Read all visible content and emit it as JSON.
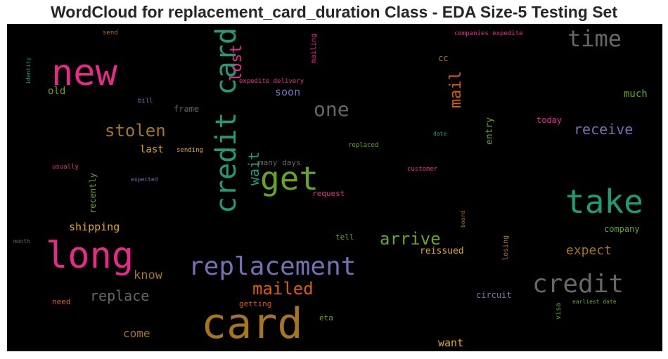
{
  "chart_data": {
    "type": "wordcloud",
    "title": "WordCloud for replacement_card_duration Class - EDA Size-5 Testing Set",
    "background": "#000000",
    "words": [
      {
        "text": "card",
        "color": "#a6761d"
      },
      {
        "text": "new",
        "color": "#e7298a"
      },
      {
        "text": "credit card",
        "color": "#1b9e77"
      },
      {
        "text": "take",
        "color": "#1b9e77"
      },
      {
        "text": "long",
        "color": "#e7298a"
      },
      {
        "text": "replacement",
        "color": "#7570b3"
      },
      {
        "text": "credit",
        "color": "#666666"
      },
      {
        "text": "get",
        "color": "#66a61e"
      },
      {
        "text": "time",
        "color": "#666666"
      },
      {
        "text": "one",
        "color": "#666666"
      },
      {
        "text": "lost",
        "color": "#e7298a"
      },
      {
        "text": "stolen",
        "color": "#a6761d"
      },
      {
        "text": "mailed",
        "color": "#d95f02"
      },
      {
        "text": "arrive",
        "color": "#66a61e"
      },
      {
        "text": "mail",
        "color": "#d95f02"
      },
      {
        "text": "receive",
        "color": "#7570b3"
      },
      {
        "text": "wait",
        "color": "#1b9e77"
      },
      {
        "text": "replace",
        "color": "#666666"
      },
      {
        "text": "expect",
        "color": "#a6761d"
      },
      {
        "text": "know",
        "color": "#a6761d"
      },
      {
        "text": "shipping",
        "color": "#e6ab02"
      },
      {
        "text": "come",
        "color": "#a6761d"
      },
      {
        "text": "want",
        "color": "#e6ab02"
      },
      {
        "text": "old",
        "color": "#66a61e"
      },
      {
        "text": "soon",
        "color": "#7570b3"
      },
      {
        "text": "much",
        "color": "#66a61e"
      },
      {
        "text": "last",
        "color": "#e6ab02"
      },
      {
        "text": "recently",
        "color": "#66a61e"
      },
      {
        "text": "reissued",
        "color": "#e6ab02"
      },
      {
        "text": "entry",
        "color": "#66a61e"
      },
      {
        "text": "circuit",
        "color": "#7570b3"
      },
      {
        "text": "company",
        "color": "#66a61e"
      },
      {
        "text": "today",
        "color": "#e7298a"
      },
      {
        "text": "cc",
        "color": "#a6761d"
      },
      {
        "text": "frame",
        "color": "#666666"
      },
      {
        "text": "many days",
        "color": "#666666"
      },
      {
        "text": "request",
        "color": "#e7298a"
      },
      {
        "text": "tell",
        "color": "#66a61e"
      },
      {
        "text": "losing",
        "color": "#a6761d"
      },
      {
        "text": "need",
        "color": "#d95f02"
      },
      {
        "text": "getting",
        "color": "#d95f02"
      },
      {
        "text": "eta",
        "color": "#66a61e"
      },
      {
        "text": "visa",
        "color": "#66a61e"
      },
      {
        "text": "mailing",
        "color": "#e7298a"
      },
      {
        "text": "send",
        "color": "#a6761d"
      },
      {
        "text": "companies expedite",
        "color": "#e7298a"
      },
      {
        "text": "expedite delivery",
        "color": "#e7298a"
      },
      {
        "text": "bill",
        "color": "#7570b3"
      },
      {
        "text": "identity",
        "color": "#1b9e77"
      },
      {
        "text": "sending",
        "color": "#e6ab02"
      },
      {
        "text": "usually",
        "color": "#e7298a"
      },
      {
        "text": "expected",
        "color": "#7570b3"
      },
      {
        "text": "date",
        "color": "#1b9e77"
      },
      {
        "text": "replaced",
        "color": "#66a61e"
      },
      {
        "text": "customer",
        "color": "#e7298a"
      },
      {
        "text": "board",
        "color": "#a6761d"
      },
      {
        "text": "month",
        "color": "#666666"
      },
      {
        "text": "earliest date",
        "color": "#66a61e"
      }
    ]
  }
}
